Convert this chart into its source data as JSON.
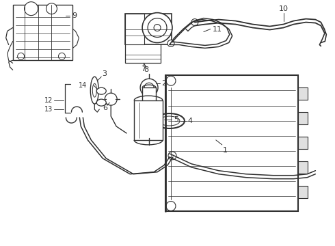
{
  "bg_color": "#ffffff",
  "line_color": "#303030",
  "label_color": "#000000",
  "figsize": [
    4.9,
    3.6
  ],
  "dpi": 100,
  "xlim": [
    0,
    490
  ],
  "ylim": [
    0,
    360
  ]
}
